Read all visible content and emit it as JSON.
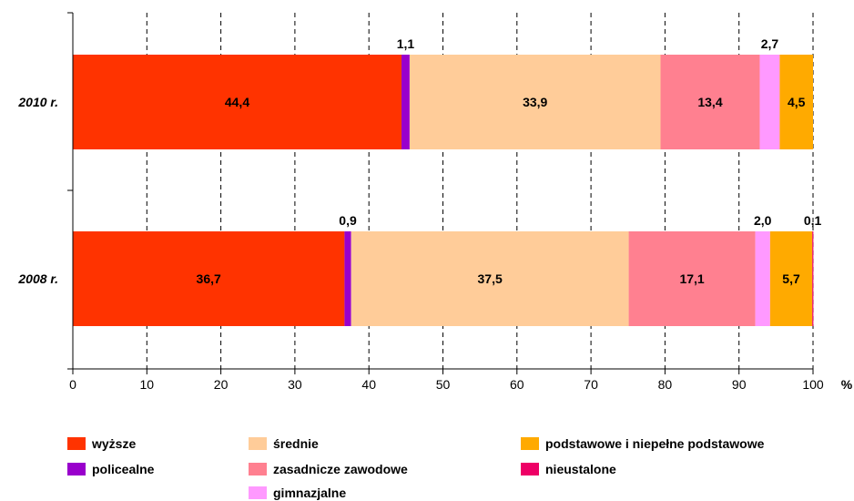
{
  "chart_data": {
    "type": "bar",
    "orientation": "horizontal",
    "stacked": true,
    "unit": "%",
    "xlim": [
      0,
      100
    ],
    "x_ticks": [
      0,
      10,
      20,
      30,
      40,
      50,
      60,
      70,
      80,
      90,
      100
    ],
    "categories": [
      "2010 r.",
      "2008 r."
    ],
    "grid": "vertical dashed",
    "legend_position": "bottom",
    "series": [
      {
        "name": "wyższe",
        "color": "#ff3300",
        "values": [
          44.4,
          36.7
        ],
        "labels": [
          "44,4",
          "36,7"
        ],
        "label_position": "inside"
      },
      {
        "name": "policealne",
        "color": "#9900cc",
        "values": [
          1.1,
          0.9
        ],
        "labels": [
          "1,1",
          "0,9"
        ],
        "label_position": "above"
      },
      {
        "name": "średnie",
        "color": "#ffcc99",
        "values": [
          33.9,
          37.5
        ],
        "labels": [
          "33,9",
          "37,5"
        ],
        "label_position": "inside"
      },
      {
        "name": "zasadnicze zawodowe",
        "color": "#ff8090",
        "values": [
          13.4,
          17.1
        ],
        "labels": [
          "13,4",
          "17,1"
        ],
        "label_position": "inside"
      },
      {
        "name": "gimnazjalne",
        "color": "#ff99ff",
        "values": [
          2.7,
          2.0
        ],
        "labels": [
          "2,7",
          "2,0"
        ],
        "label_position": "above"
      },
      {
        "name": "podstawowe i niepełne podstawowe",
        "color": "#ffaa00",
        "values": [
          4.5,
          5.7
        ],
        "labels": [
          "4,5",
          "5,7"
        ],
        "label_position": "inside"
      },
      {
        "name": "nieustalone",
        "color": "#ee0066",
        "values": [
          0.0,
          0.1
        ],
        "labels": [
          "",
          "0,1"
        ],
        "label_position": "above"
      }
    ]
  }
}
